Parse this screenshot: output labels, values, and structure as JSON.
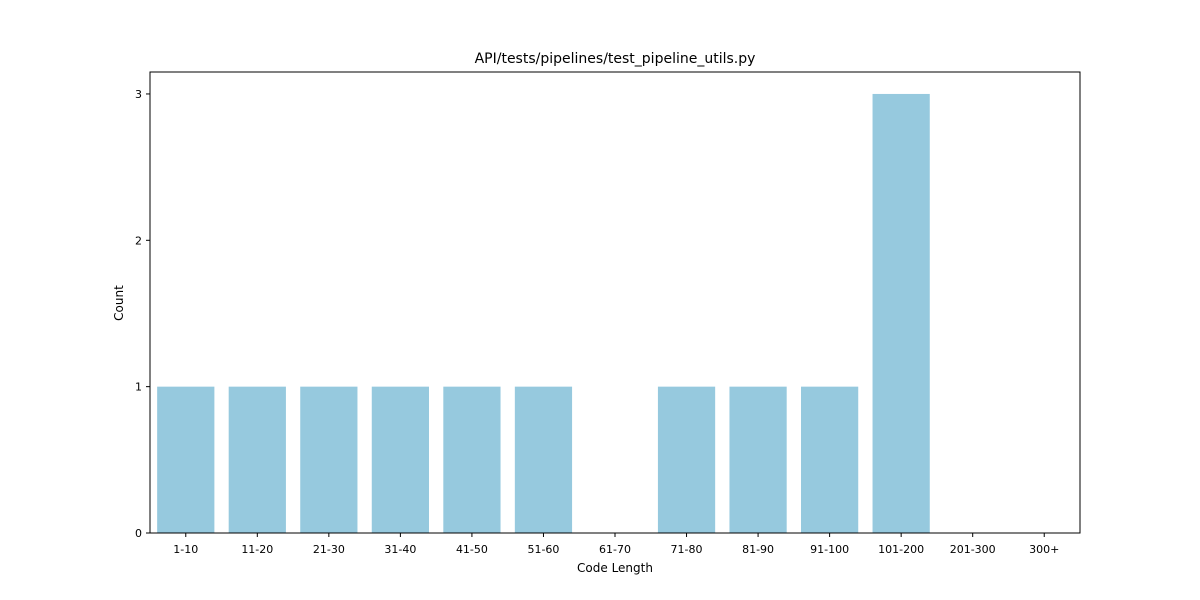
{
  "chart_data": {
    "type": "bar",
    "title": "API/tests/pipelines/test_pipeline_utils.py",
    "xlabel": "Code Length",
    "ylabel": "Count",
    "categories": [
      "1-10",
      "11-20",
      "21-30",
      "31-40",
      "41-50",
      "51-60",
      "61-70",
      "71-80",
      "81-90",
      "91-100",
      "101-200",
      "201-300",
      "300+"
    ],
    "values": [
      1,
      1,
      1,
      1,
      1,
      1,
      0,
      1,
      1,
      1,
      3,
      0,
      0
    ],
    "yticks": [
      0,
      1,
      2,
      3
    ],
    "ylim": [
      0,
      3.15
    ],
    "grid": false,
    "bar_color": "#96c9de"
  }
}
